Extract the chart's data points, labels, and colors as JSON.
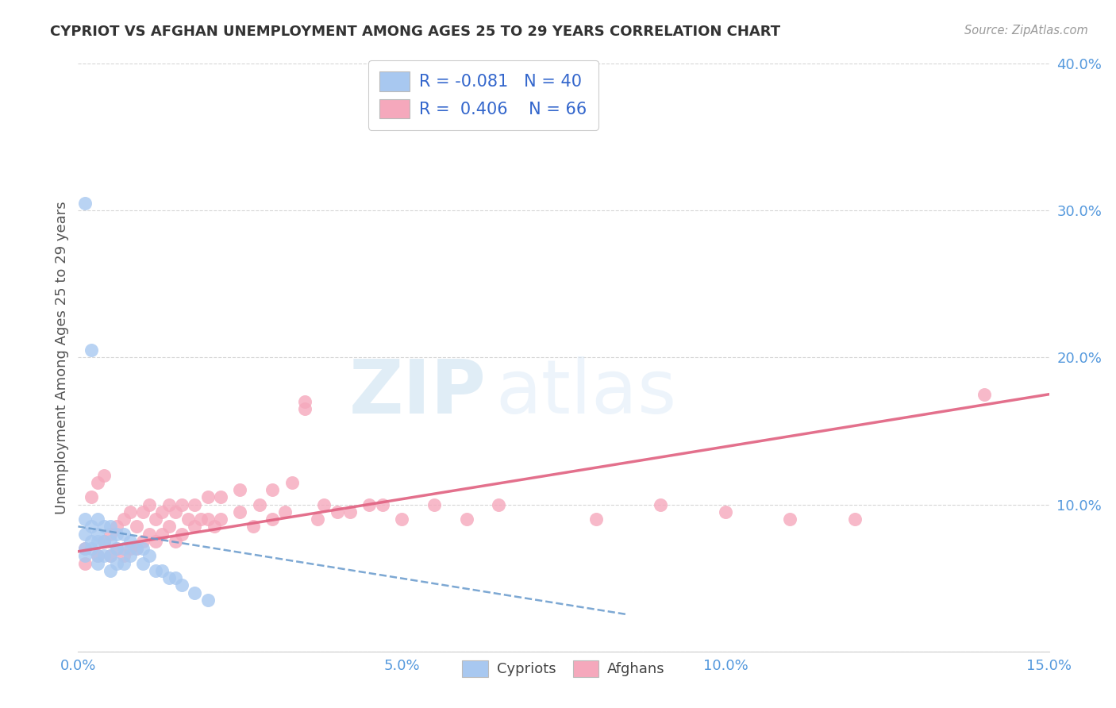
{
  "title": "CYPRIOT VS AFGHAN UNEMPLOYMENT AMONG AGES 25 TO 29 YEARS CORRELATION CHART",
  "source": "Source: ZipAtlas.com",
  "ylabel": "Unemployment Among Ages 25 to 29 years",
  "xlim": [
    0.0,
    0.15
  ],
  "ylim": [
    0.0,
    0.4
  ],
  "xticks": [
    0.0,
    0.05,
    0.1,
    0.15
  ],
  "xtick_labels": [
    "0.0%",
    "5.0%",
    "10.0%",
    "15.0%"
  ],
  "yticks": [
    0.0,
    0.1,
    0.2,
    0.3,
    0.4
  ],
  "ytick_labels": [
    "",
    "10.0%",
    "20.0%",
    "30.0%",
    "40.0%"
  ],
  "cypriot_color": "#a8c8f0",
  "afghan_color": "#f5a8bc",
  "cypriot_line_color": "#6699cc",
  "afghan_line_color": "#e06080",
  "R_cypriot": -0.081,
  "N_cypriot": 40,
  "R_afghan": 0.406,
  "N_afghan": 66,
  "cypriot_x": [
    0.001,
    0.001,
    0.001,
    0.001,
    0.001,
    0.002,
    0.002,
    0.002,
    0.002,
    0.003,
    0.003,
    0.003,
    0.003,
    0.003,
    0.004,
    0.004,
    0.004,
    0.005,
    0.005,
    0.005,
    0.005,
    0.006,
    0.006,
    0.006,
    0.007,
    0.007,
    0.007,
    0.008,
    0.008,
    0.009,
    0.01,
    0.01,
    0.011,
    0.012,
    0.013,
    0.014,
    0.015,
    0.016,
    0.018,
    0.02
  ],
  "cypriot_y": [
    0.305,
    0.09,
    0.08,
    0.07,
    0.065,
    0.205,
    0.085,
    0.075,
    0.07,
    0.09,
    0.08,
    0.075,
    0.065,
    0.06,
    0.085,
    0.075,
    0.065,
    0.085,
    0.075,
    0.065,
    0.055,
    0.08,
    0.07,
    0.06,
    0.08,
    0.07,
    0.06,
    0.075,
    0.065,
    0.07,
    0.07,
    0.06,
    0.065,
    0.055,
    0.055,
    0.05,
    0.05,
    0.045,
    0.04,
    0.035
  ],
  "afghan_x": [
    0.001,
    0.001,
    0.002,
    0.003,
    0.003,
    0.004,
    0.004,
    0.005,
    0.005,
    0.006,
    0.006,
    0.007,
    0.007,
    0.008,
    0.008,
    0.009,
    0.009,
    0.01,
    0.01,
    0.011,
    0.011,
    0.012,
    0.012,
    0.013,
    0.013,
    0.014,
    0.014,
    0.015,
    0.015,
    0.016,
    0.016,
    0.017,
    0.018,
    0.018,
    0.019,
    0.02,
    0.02,
    0.021,
    0.022,
    0.022,
    0.025,
    0.025,
    0.027,
    0.028,
    0.03,
    0.03,
    0.032,
    0.033,
    0.035,
    0.035,
    0.037,
    0.038,
    0.04,
    0.042,
    0.045,
    0.047,
    0.05,
    0.055,
    0.06,
    0.065,
    0.08,
    0.09,
    0.1,
    0.11,
    0.12,
    0.14
  ],
  "afghan_y": [
    0.06,
    0.07,
    0.105,
    0.065,
    0.115,
    0.075,
    0.12,
    0.065,
    0.08,
    0.07,
    0.085,
    0.065,
    0.09,
    0.07,
    0.095,
    0.07,
    0.085,
    0.075,
    0.095,
    0.08,
    0.1,
    0.075,
    0.09,
    0.08,
    0.095,
    0.085,
    0.1,
    0.075,
    0.095,
    0.08,
    0.1,
    0.09,
    0.085,
    0.1,
    0.09,
    0.09,
    0.105,
    0.085,
    0.09,
    0.105,
    0.095,
    0.11,
    0.085,
    0.1,
    0.09,
    0.11,
    0.095,
    0.115,
    0.165,
    0.17,
    0.09,
    0.1,
    0.095,
    0.095,
    0.1,
    0.1,
    0.09,
    0.1,
    0.09,
    0.1,
    0.09,
    0.1,
    0.095,
    0.09,
    0.09,
    0.175
  ],
  "watermark_zip": "ZIP",
  "watermark_atlas": "atlas",
  "background_color": "#ffffff",
  "grid_color": "#cccccc",
  "tick_color": "#5599dd",
  "label_color": "#555555",
  "title_color": "#333333",
  "source_color": "#999999"
}
